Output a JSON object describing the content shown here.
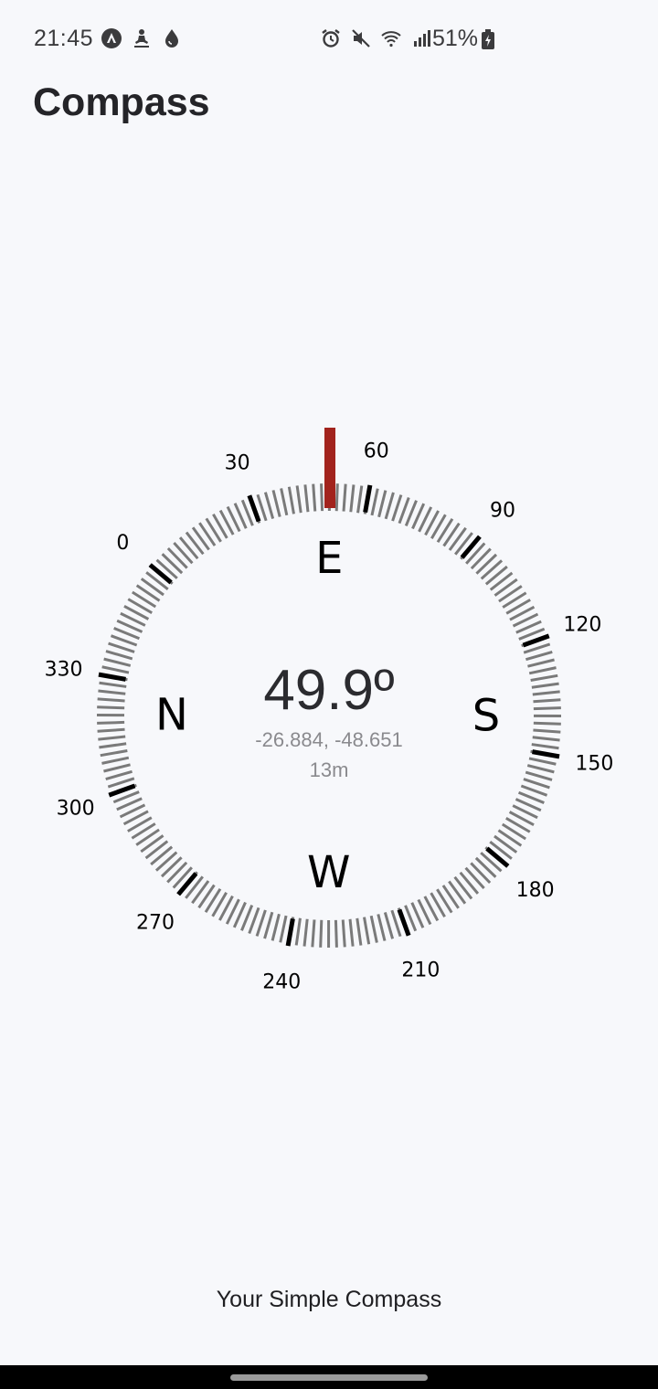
{
  "status_bar": {
    "time": "21:45",
    "battery": "51%",
    "left_icons": [
      "app-notification-icon",
      "meditation-icon",
      "water-drop-icon"
    ],
    "right_icons": [
      "alarm-icon",
      "mute-icon",
      "wifi-icon",
      "signal-icon",
      "battery-icon"
    ]
  },
  "header": {
    "title": "Compass"
  },
  "compass": {
    "heading": "49.9º",
    "coordinates": "-26.884, -48.651",
    "altitude": "13m",
    "heading_degrees": 49.9,
    "cardinals": [
      "N",
      "E",
      "S",
      "W"
    ],
    "degree_labels": [
      "0",
      "30",
      "60",
      "90",
      "120",
      "150",
      "180",
      "210",
      "240",
      "270",
      "300",
      "330"
    ],
    "colors": {
      "needle": "#a2231d",
      "minor_tick": "#7a7a7a",
      "major_tick": "#000000"
    }
  },
  "footer": {
    "text": "Your Simple Compass"
  }
}
